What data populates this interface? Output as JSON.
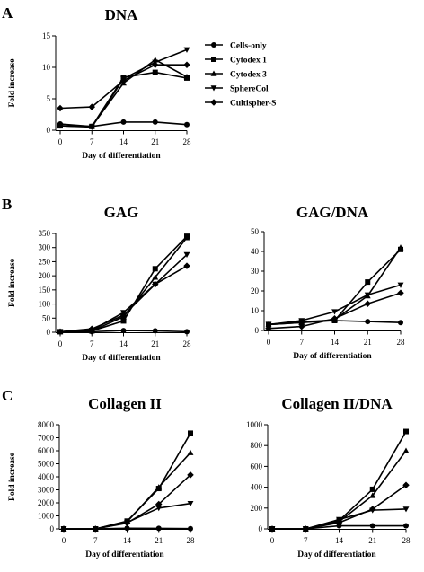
{
  "panels": [
    {
      "letter": "A"
    },
    {
      "letter": "B"
    },
    {
      "letter": "C"
    }
  ],
  "legend_entries": [
    {
      "name": "Cells-only",
      "marker": "circle"
    },
    {
      "name": "Cytodex 1",
      "marker": "square"
    },
    {
      "name": "Cytodex 3",
      "marker": "triangle-up"
    },
    {
      "name": "SphereCol",
      "marker": "triangle-down"
    },
    {
      "name": "Cultispher-S",
      "marker": "diamond"
    }
  ],
  "chart_data": [
    {
      "type": "line",
      "title": "DNA",
      "xlabel": "Day of differentiation",
      "ylabel": "Fold increase",
      "x": [
        0,
        7,
        14,
        21,
        28
      ],
      "xlim": [
        0,
        28
      ],
      "ylim": [
        0,
        15
      ],
      "yticks": [
        0,
        5,
        10,
        15
      ],
      "legend": "right",
      "series": [
        {
          "name": "Cells-only",
          "values": [
            1,
            0.6,
            1.3,
            1.3,
            0.9
          ]
        },
        {
          "name": "Cytodex 1",
          "values": [
            0.7,
            0.6,
            8.4,
            9.2,
            8.3
          ]
        },
        {
          "name": "Cytodex 3",
          "values": [
            0.7,
            0.6,
            7.5,
            11.2,
            8.5
          ]
        },
        {
          "name": "SphereCol",
          "values": [
            0.7,
            0.5,
            8.2,
            10.8,
            12.8
          ]
        },
        {
          "name": "Cultispher-S",
          "values": [
            3.5,
            3.7,
            7.9,
            10.4,
            10.4
          ]
        }
      ]
    },
    {
      "type": "line",
      "title": "GAG",
      "xlabel": "Day of differentiation",
      "ylabel": "Fold increase",
      "x": [
        0,
        7,
        14,
        21,
        28
      ],
      "xlim": [
        0,
        28
      ],
      "ylim": [
        0,
        350
      ],
      "yticks": [
        0,
        50,
        100,
        150,
        200,
        250,
        300,
        350
      ],
      "series": [
        {
          "name": "Cells-only",
          "values": [
            2,
            2,
            6,
            5,
            2
          ]
        },
        {
          "name": "Cytodex 1",
          "values": [
            2,
            5,
            40,
            225,
            340
          ]
        },
        {
          "name": "Cytodex 3",
          "values": [
            2,
            5,
            55,
            195,
            335
          ]
        },
        {
          "name": "SphereCol",
          "values": [
            2,
            7,
            70,
            170,
            275
          ]
        },
        {
          "name": "Cultispher-S",
          "values": [
            2,
            12,
            60,
            170,
            235
          ]
        }
      ]
    },
    {
      "type": "line",
      "title": "GAG/DNA",
      "xlabel": "Day of differentiation",
      "ylabel": "",
      "x": [
        0,
        7,
        14,
        21,
        28
      ],
      "xlim": [
        0,
        28
      ],
      "ylim": [
        0,
        50
      ],
      "yticks": [
        0,
        10,
        20,
        30,
        40,
        50
      ],
      "series": [
        {
          "name": "Cells-only",
          "values": [
            3,
            4,
            5,
            4.5,
            4
          ]
        },
        {
          "name": "Cytodex 1",
          "values": [
            3,
            4.5,
            5,
            24.5,
            41
          ]
        },
        {
          "name": "Cytodex 3",
          "values": [
            3,
            4,
            5.5,
            17.5,
            42
          ]
        },
        {
          "name": "SphereCol",
          "values": [
            3,
            5,
            9.5,
            18,
            23
          ]
        },
        {
          "name": "Cultispher-S",
          "values": [
            1,
            2,
            6,
            13.5,
            19
          ]
        }
      ]
    },
    {
      "type": "line",
      "title": "Collagen II",
      "xlabel": "Day of differentiation",
      "ylabel": "Fold increase",
      "x": [
        0,
        7,
        14,
        21,
        28
      ],
      "xlim": [
        0,
        28
      ],
      "ylim": [
        0,
        8000
      ],
      "yticks": [
        0,
        1000,
        2000,
        3000,
        4000,
        5000,
        6000,
        7000,
        8000
      ],
      "series": [
        {
          "name": "Cells-only",
          "values": [
            0,
            0,
            50,
            40,
            20
          ]
        },
        {
          "name": "Cytodex 1",
          "values": [
            0,
            0,
            600,
            3100,
            7350
          ]
        },
        {
          "name": "Cytodex 3",
          "values": [
            0,
            0,
            550,
            3200,
            5850
          ]
        },
        {
          "name": "SphereCol",
          "values": [
            0,
            0,
            500,
            1600,
            1950
          ]
        },
        {
          "name": "Cultispher-S",
          "values": [
            0,
            0,
            450,
            1900,
            4150
          ]
        }
      ]
    },
    {
      "type": "line",
      "title": "Collagen II/DNA",
      "xlabel": "Day of differentiation",
      "ylabel": "",
      "x": [
        0,
        7,
        14,
        21,
        28
      ],
      "xlim": [
        0,
        28
      ],
      "ylim": [
        0,
        1000
      ],
      "yticks": [
        0,
        200,
        400,
        600,
        800,
        1000
      ],
      "series": [
        {
          "name": "Cells-only",
          "values": [
            0,
            0,
            30,
            30,
            30
          ]
        },
        {
          "name": "Cytodex 1",
          "values": [
            0,
            0,
            80,
            380,
            935
          ]
        },
        {
          "name": "Cytodex 3",
          "values": [
            0,
            0,
            70,
            320,
            750
          ]
        },
        {
          "name": "SphereCol",
          "values": [
            0,
            0,
            90,
            180,
            190
          ]
        },
        {
          "name": "Cultispher-S",
          "values": [
            0,
            0,
            60,
            190,
            420
          ]
        }
      ]
    }
  ]
}
